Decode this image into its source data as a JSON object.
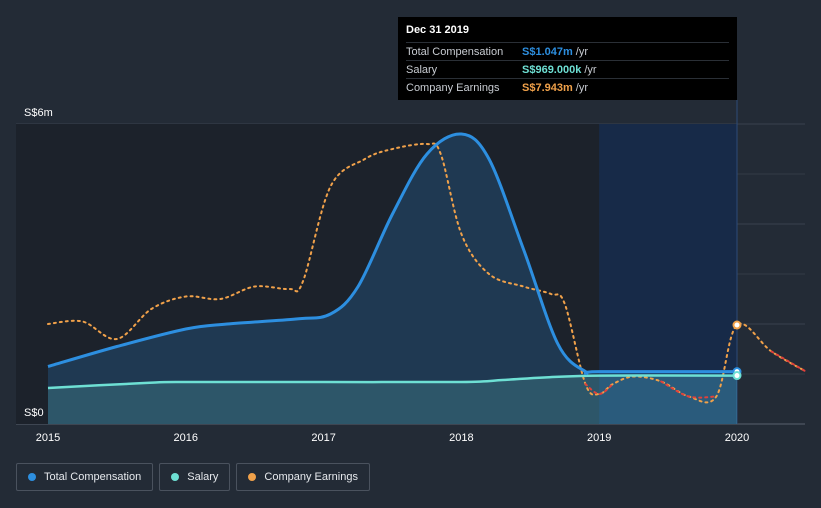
{
  "chart_data": {
    "type": "line",
    "x_ticks": [
      "2015",
      "2016",
      "2017",
      "2018",
      "2019",
      "2020"
    ],
    "y_ticks": [
      "S$0",
      "S$6m"
    ],
    "ylim": [
      0,
      6
    ],
    "series": [
      {
        "name": "Total Compensation",
        "color": "#2d8fe0",
        "points": [
          [
            2015.0,
            1.15
          ],
          [
            2015.5,
            1.55
          ],
          [
            2016.0,
            1.9
          ],
          [
            2016.3,
            2.0
          ],
          [
            2016.8,
            2.1
          ],
          [
            2017.05,
            2.2
          ],
          [
            2017.25,
            2.75
          ],
          [
            2017.5,
            4.2
          ],
          [
            2017.75,
            5.4
          ],
          [
            2018.0,
            5.8
          ],
          [
            2018.2,
            5.3
          ],
          [
            2018.45,
            3.5
          ],
          [
            2018.7,
            1.6
          ],
          [
            2018.9,
            1.05
          ],
          [
            2019.0,
            1.047
          ],
          [
            2020.0,
            1.047
          ]
        ]
      },
      {
        "name": "Salary",
        "color": "#6ee0d4",
        "points": [
          [
            2015.0,
            0.72
          ],
          [
            2015.7,
            0.82
          ],
          [
            2016.0,
            0.84
          ],
          [
            2017.0,
            0.84
          ],
          [
            2018.0,
            0.84
          ],
          [
            2018.3,
            0.88
          ],
          [
            2018.6,
            0.93
          ],
          [
            2019.0,
            0.969
          ],
          [
            2020.0,
            0.969
          ]
        ]
      },
      {
        "name": "Company Earnings",
        "color": "#f0a14a",
        "negative_color": "#e0413b",
        "points": [
          [
            2015.0,
            2.0
          ],
          [
            2015.25,
            2.05
          ],
          [
            2015.5,
            1.7
          ],
          [
            2015.75,
            2.3
          ],
          [
            2016.0,
            2.55
          ],
          [
            2016.25,
            2.5
          ],
          [
            2016.5,
            2.75
          ],
          [
            2016.75,
            2.7
          ],
          [
            2016.85,
            2.85
          ],
          [
            2017.05,
            4.75
          ],
          [
            2017.3,
            5.3
          ],
          [
            2017.5,
            5.5
          ],
          [
            2017.75,
            5.6
          ],
          [
            2017.85,
            5.4
          ],
          [
            2018.0,
            3.8
          ],
          [
            2018.2,
            3.0
          ],
          [
            2018.45,
            2.75
          ],
          [
            2018.65,
            2.6
          ],
          [
            2018.75,
            2.4
          ],
          [
            2018.9,
            0.8
          ],
          [
            2019.0,
            0.6
          ],
          [
            2019.1,
            0.8
          ],
          [
            2019.25,
            0.95
          ],
          [
            2019.45,
            0.85
          ],
          [
            2019.65,
            0.55
          ],
          [
            2019.85,
            0.55
          ],
          [
            2020.0,
            1.98
          ],
          [
            2020.25,
            1.45
          ],
          [
            2020.5,
            1.05
          ]
        ]
      }
    ]
  },
  "tooltip": {
    "date": "Dec 31 2019",
    "rows": [
      {
        "label": "Total Compensation",
        "value": "S$1.047m",
        "unit": "/yr",
        "color": "#2d8fe0"
      },
      {
        "label": "Salary",
        "value": "S$969.000k",
        "unit": "/yr",
        "color": "#6ee0d4"
      },
      {
        "label": "Company Earnings",
        "value": "S$7.943m",
        "unit": "/yr",
        "color": "#f0a14a"
      }
    ]
  },
  "legend": [
    {
      "label": "Total Compensation",
      "color": "#2d8fe0"
    },
    {
      "label": "Salary",
      "color": "#6ee0d4"
    },
    {
      "label": "Company Earnings",
      "color": "#f0a14a"
    }
  ]
}
